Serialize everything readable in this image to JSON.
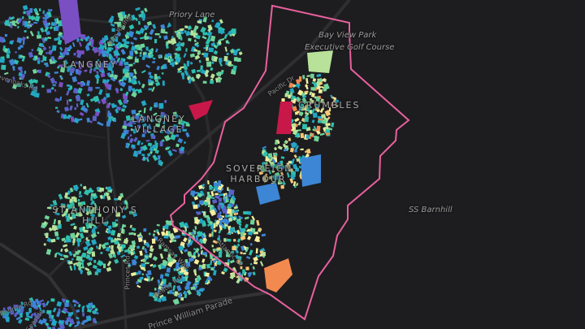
{
  "map": {
    "place_labels": [
      "LANGNEY",
      "LANGNEY VILLAGE",
      "CRUMBLES",
      "SOVEREIGN HARBOUR",
      "ST ANTHONY'S HILL"
    ],
    "poi_labels": [
      "Priory Lane",
      "Bay View Park",
      "Executive Golf Course",
      "SS Barnhill"
    ],
    "road_labels": [
      "Sevenoaks Rd",
      "Kite Rising",
      "Pacific Dr",
      "Princes Rd",
      "Ramsay Way",
      "Beatty Rd",
      "Atlantic Dr",
      "Prince William Parade",
      "Seaside",
      "Bourne Rd"
    ],
    "boundary_color": "#e8609e",
    "background_color": "#1d1d1f",
    "building_palette": [
      "#7b4fc4",
      "#5a62c9",
      "#3d86d6",
      "#22a7c4",
      "#2fbfae",
      "#6fd39a",
      "#b8e29a",
      "#f3ee9c",
      "#f6c777",
      "#f28a50",
      "#c8184a"
    ]
  }
}
